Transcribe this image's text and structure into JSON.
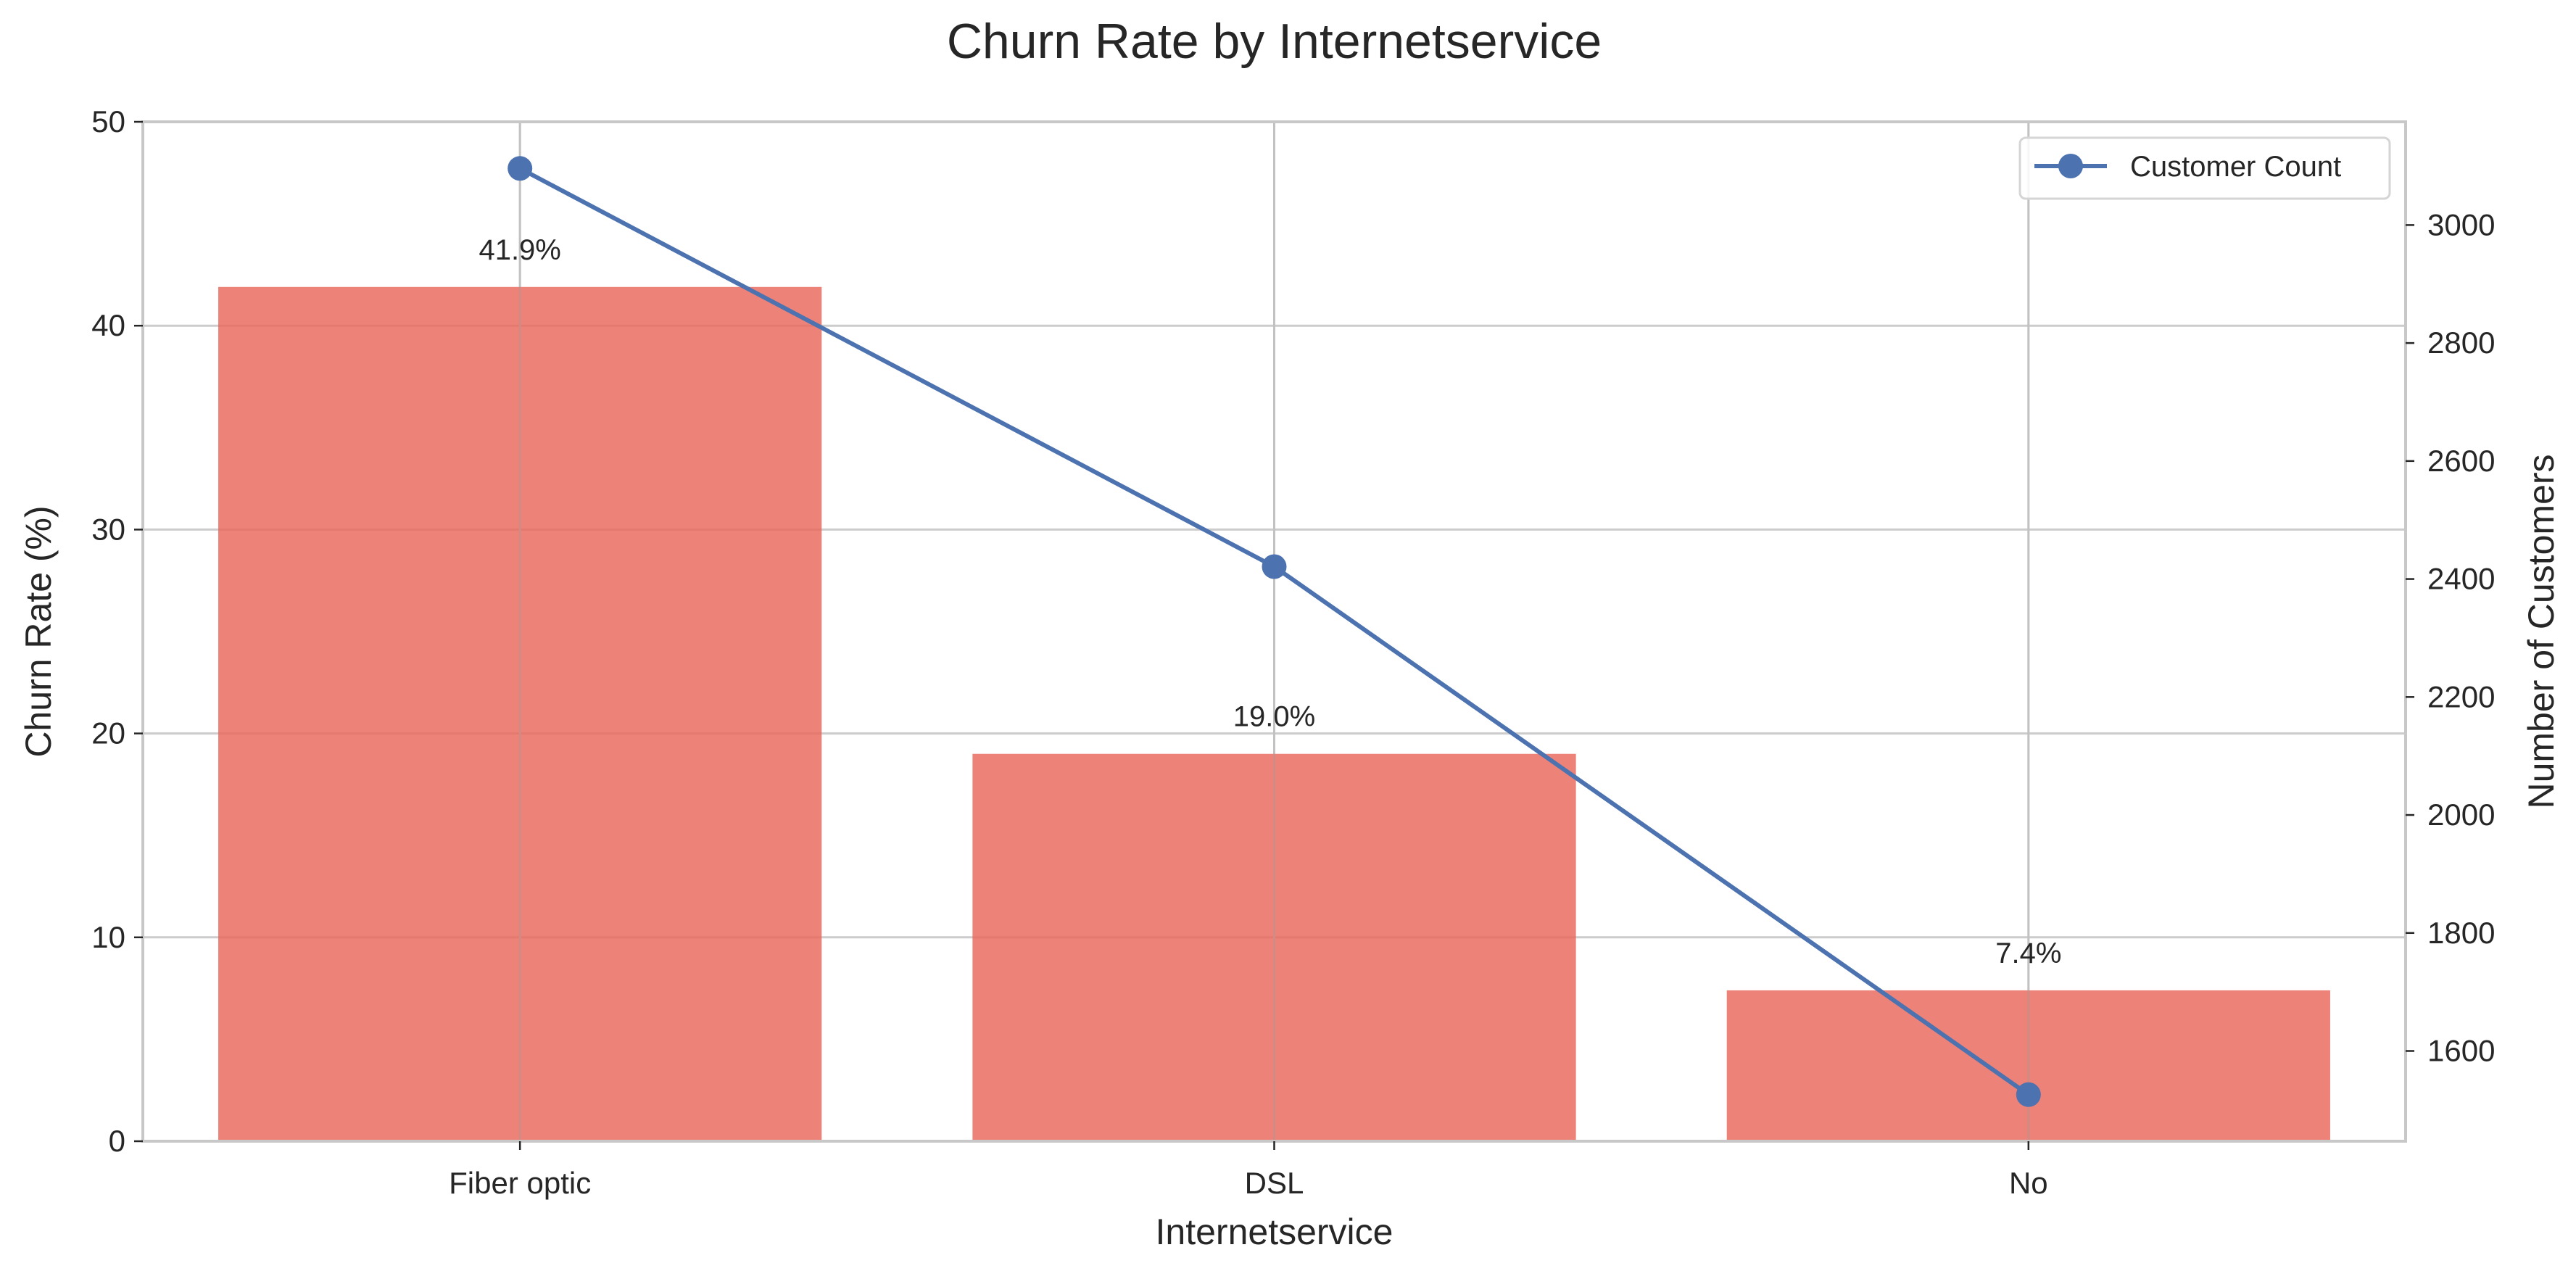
{
  "chart_data": {
    "type": "bar",
    "title": "Churn Rate by Internetservice",
    "xlabel": "Internetservice",
    "ylabel": "Churn Rate (%)",
    "y2label": "Number of Customers",
    "categories": [
      "Fiber optic",
      "DSL",
      "No"
    ],
    "series": [
      {
        "type": "bar",
        "axis": "left",
        "values": [
          41.9,
          19.0,
          7.4
        ],
        "labels": [
          "41.9%",
          "19.0%",
          "7.4%"
        ],
        "color": "#e8665a"
      },
      {
        "type": "line",
        "axis": "right",
        "name": "Customer Count",
        "values": [
          3096,
          2421,
          1526
        ],
        "color": "#4c72b0"
      }
    ],
    "ylim": [
      0,
      50
    ],
    "yticks": [
      0,
      10,
      20,
      30,
      40,
      50
    ],
    "y2lim": [
      1447,
      3175
    ],
    "y2ticks": [
      1600,
      1800,
      2000,
      2200,
      2400,
      2600,
      2800,
      3000
    ],
    "grid": true,
    "legend_position": "top-right"
  }
}
